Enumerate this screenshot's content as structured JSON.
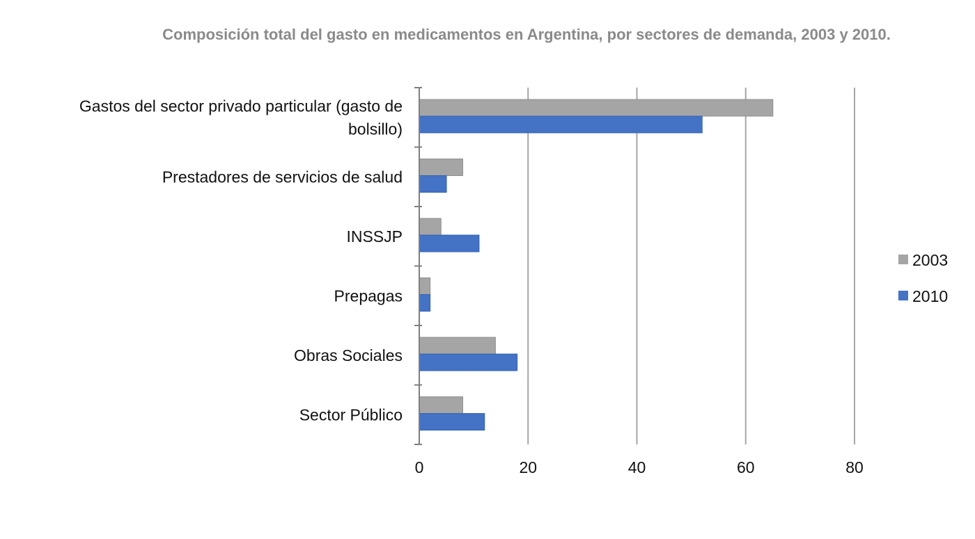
{
  "chart_data": {
    "type": "bar",
    "orientation": "horizontal",
    "title": "Composición total del gasto en medicamentos en Argentina, por sectores de demanda, 2003 y 2010.",
    "xlabel": "",
    "ylabel": "",
    "categories": [
      [
        "Gastos del sector privado  particular  (gasto de",
        "bolsillo)"
      ],
      [
        "Prestadores de servicios de salud"
      ],
      [
        "INSSJP"
      ],
      [
        "Prepagas"
      ],
      [
        "Obras Sociales"
      ],
      [
        "Sector Público"
      ]
    ],
    "series": [
      {
        "name": "2003",
        "color": "#a5a5a5",
        "values": [
          65,
          8,
          4,
          2,
          14,
          8
        ]
      },
      {
        "name": "2010",
        "color": "#4472c4",
        "values": [
          52,
          5,
          11,
          2,
          18,
          12
        ]
      }
    ],
    "xlim": [
      0,
      80
    ],
    "xticks": [
      0,
      20,
      40,
      60,
      80
    ],
    "grid": true,
    "legend_position": "right"
  }
}
